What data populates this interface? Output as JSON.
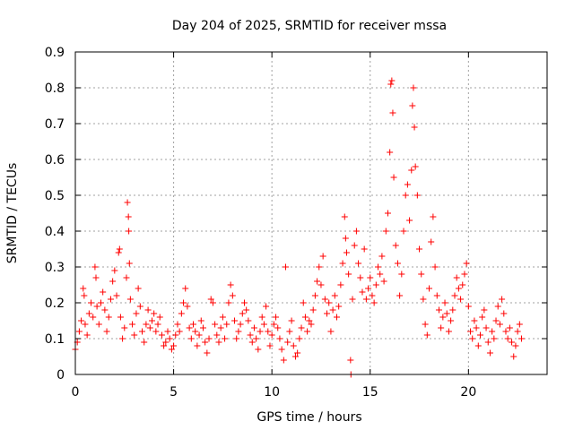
{
  "chart_data": {
    "type": "scatter",
    "title": "Day 204 of 2025, SRMTID for receiver mssa",
    "xlabel": "GPS time / hours",
    "ylabel": "SRMTID / TECUs",
    "xlim": [
      0,
      24
    ],
    "ylim": [
      0,
      0.9
    ],
    "xticks": [
      0,
      5,
      10,
      15,
      20
    ],
    "yticks": [
      0,
      0.1,
      0.2,
      0.3,
      0.4,
      0.5,
      0.6,
      0.7,
      0.8,
      0.9
    ],
    "xtick_labels": [
      "0",
      "5",
      "10",
      "15",
      "20"
    ],
    "ytick_labels": [
      "0",
      "0.1",
      "0.2",
      "0.3",
      "0.4",
      "0.5",
      "0.6",
      "0.7",
      "0.8",
      "0.9"
    ],
    "grid": true,
    "marker": "+",
    "color": "#ff0000",
    "series": [
      {
        "name": "SRMTID",
        "points": [
          [
            0.0,
            0.07
          ],
          [
            0.1,
            0.09
          ],
          [
            0.2,
            0.12
          ],
          [
            0.3,
            0.15
          ],
          [
            0.4,
            0.24
          ],
          [
            0.45,
            0.22
          ],
          [
            0.5,
            0.14
          ],
          [
            0.6,
            0.11
          ],
          [
            0.7,
            0.17
          ],
          [
            0.8,
            0.2
          ],
          [
            0.9,
            0.16
          ],
          [
            1.0,
            0.3
          ],
          [
            1.05,
            0.27
          ],
          [
            1.1,
            0.19
          ],
          [
            1.2,
            0.14
          ],
          [
            1.3,
            0.2
          ],
          [
            1.4,
            0.23
          ],
          [
            1.5,
            0.18
          ],
          [
            1.6,
            0.12
          ],
          [
            1.7,
            0.16
          ],
          [
            1.8,
            0.21
          ],
          [
            1.9,
            0.26
          ],
          [
            2.0,
            0.29
          ],
          [
            2.1,
            0.22
          ],
          [
            2.2,
            0.34
          ],
          [
            2.25,
            0.35
          ],
          [
            2.3,
            0.16
          ],
          [
            2.4,
            0.1
          ],
          [
            2.5,
            0.13
          ],
          [
            2.6,
            0.27
          ],
          [
            2.65,
            0.48
          ],
          [
            2.7,
            0.44
          ],
          [
            2.72,
            0.4
          ],
          [
            2.75,
            0.31
          ],
          [
            2.8,
            0.21
          ],
          [
            2.9,
            0.14
          ],
          [
            3.0,
            0.11
          ],
          [
            3.1,
            0.17
          ],
          [
            3.2,
            0.24
          ],
          [
            3.3,
            0.19
          ],
          [
            3.4,
            0.12
          ],
          [
            3.5,
            0.09
          ],
          [
            3.6,
            0.14
          ],
          [
            3.7,
            0.18
          ],
          [
            3.8,
            0.13
          ],
          [
            3.9,
            0.15
          ],
          [
            4.0,
            0.17
          ],
          [
            4.1,
            0.12
          ],
          [
            4.2,
            0.14
          ],
          [
            4.3,
            0.16
          ],
          [
            4.4,
            0.11
          ],
          [
            4.5,
            0.08
          ],
          [
            4.6,
            0.09
          ],
          [
            4.7,
            0.12
          ],
          [
            4.8,
            0.1
          ],
          [
            4.9,
            0.07
          ],
          [
            5.0,
            0.08
          ],
          [
            5.1,
            0.11
          ],
          [
            5.2,
            0.14
          ],
          [
            5.3,
            0.12
          ],
          [
            5.4,
            0.17
          ],
          [
            5.5,
            0.2
          ],
          [
            5.6,
            0.24
          ],
          [
            5.7,
            0.19
          ],
          [
            5.8,
            0.13
          ],
          [
            5.9,
            0.1
          ],
          [
            6.0,
            0.14
          ],
          [
            6.1,
            0.12
          ],
          [
            6.2,
            0.08
          ],
          [
            6.3,
            0.11
          ],
          [
            6.4,
            0.15
          ],
          [
            6.5,
            0.13
          ],
          [
            6.6,
            0.09
          ],
          [
            6.7,
            0.06
          ],
          [
            6.8,
            0.1
          ],
          [
            6.9,
            0.21
          ],
          [
            7.0,
            0.2
          ],
          [
            7.1,
            0.14
          ],
          [
            7.2,
            0.11
          ],
          [
            7.3,
            0.09
          ],
          [
            7.4,
            0.13
          ],
          [
            7.5,
            0.16
          ],
          [
            7.6,
            0.1
          ],
          [
            7.7,
            0.14
          ],
          [
            7.8,
            0.2
          ],
          [
            7.9,
            0.25
          ],
          [
            8.0,
            0.22
          ],
          [
            8.1,
            0.15
          ],
          [
            8.2,
            0.1
          ],
          [
            8.3,
            0.12
          ],
          [
            8.4,
            0.14
          ],
          [
            8.5,
            0.17
          ],
          [
            8.6,
            0.2
          ],
          [
            8.7,
            0.18
          ],
          [
            8.8,
            0.15
          ],
          [
            8.9,
            0.11
          ],
          [
            9.0,
            0.09
          ],
          [
            9.1,
            0.13
          ],
          [
            9.2,
            0.1
          ],
          [
            9.3,
            0.07
          ],
          [
            9.4,
            0.12
          ],
          [
            9.5,
            0.16
          ],
          [
            9.6,
            0.14
          ],
          [
            9.7,
            0.19
          ],
          [
            9.8,
            0.12
          ],
          [
            9.9,
            0.08
          ],
          [
            10.0,
            0.11
          ],
          [
            10.1,
            0.14
          ],
          [
            10.2,
            0.16
          ],
          [
            10.3,
            0.13
          ],
          [
            10.4,
            0.1
          ],
          [
            10.5,
            0.07
          ],
          [
            10.6,
            0.04
          ],
          [
            10.7,
            0.3
          ],
          [
            10.8,
            0.09
          ],
          [
            10.9,
            0.12
          ],
          [
            11.0,
            0.15
          ],
          [
            11.1,
            0.08
          ],
          [
            11.2,
            0.05
          ],
          [
            11.3,
            0.06
          ],
          [
            11.4,
            0.1
          ],
          [
            11.5,
            0.13
          ],
          [
            11.6,
            0.2
          ],
          [
            11.7,
            0.16
          ],
          [
            11.8,
            0.12
          ],
          [
            11.9,
            0.15
          ],
          [
            12.0,
            0.14
          ],
          [
            12.1,
            0.18
          ],
          [
            12.2,
            0.22
          ],
          [
            12.3,
            0.26
          ],
          [
            12.4,
            0.3
          ],
          [
            12.5,
            0.25
          ],
          [
            12.6,
            0.33
          ],
          [
            12.7,
            0.21
          ],
          [
            12.8,
            0.17
          ],
          [
            12.9,
            0.2
          ],
          [
            13.0,
            0.12
          ],
          [
            13.1,
            0.18
          ],
          [
            13.2,
            0.22
          ],
          [
            13.3,
            0.16
          ],
          [
            13.4,
            0.19
          ],
          [
            13.5,
            0.25
          ],
          [
            13.6,
            0.31
          ],
          [
            13.7,
            0.44
          ],
          [
            13.75,
            0.38
          ],
          [
            13.8,
            0.34
          ],
          [
            13.9,
            0.28
          ],
          [
            14.0,
            0.04
          ],
          [
            14.02,
            0.0
          ],
          [
            14.1,
            0.21
          ],
          [
            14.2,
            0.36
          ],
          [
            14.3,
            0.4
          ],
          [
            14.4,
            0.31
          ],
          [
            14.5,
            0.27
          ],
          [
            14.6,
            0.23
          ],
          [
            14.7,
            0.35
          ],
          [
            14.8,
            0.21
          ],
          [
            14.9,
            0.24
          ],
          [
            15.0,
            0.27
          ],
          [
            15.1,
            0.22
          ],
          [
            15.2,
            0.2
          ],
          [
            15.3,
            0.25
          ],
          [
            15.4,
            0.3
          ],
          [
            15.5,
            0.28
          ],
          [
            15.6,
            0.33
          ],
          [
            15.7,
            0.26
          ],
          [
            15.8,
            0.4
          ],
          [
            15.9,
            0.45
          ],
          [
            16.0,
            0.62
          ],
          [
            16.05,
            0.81
          ],
          [
            16.1,
            0.82
          ],
          [
            16.15,
            0.73
          ],
          [
            16.2,
            0.55
          ],
          [
            16.3,
            0.36
          ],
          [
            16.4,
            0.31
          ],
          [
            16.5,
            0.22
          ],
          [
            16.6,
            0.28
          ],
          [
            16.7,
            0.4
          ],
          [
            16.8,
            0.5
          ],
          [
            16.9,
            0.53
          ],
          [
            17.0,
            0.43
          ],
          [
            17.1,
            0.57
          ],
          [
            17.15,
            0.75
          ],
          [
            17.2,
            0.8
          ],
          [
            17.25,
            0.69
          ],
          [
            17.3,
            0.58
          ],
          [
            17.4,
            0.5
          ],
          [
            17.5,
            0.35
          ],
          [
            17.6,
            0.28
          ],
          [
            17.7,
            0.21
          ],
          [
            17.8,
            0.14
          ],
          [
            17.9,
            0.11
          ],
          [
            18.0,
            0.24
          ],
          [
            18.1,
            0.37
          ],
          [
            18.2,
            0.44
          ],
          [
            18.3,
            0.3
          ],
          [
            18.4,
            0.22
          ],
          [
            18.5,
            0.18
          ],
          [
            18.6,
            0.13
          ],
          [
            18.7,
            0.16
          ],
          [
            18.8,
            0.2
          ],
          [
            18.9,
            0.17
          ],
          [
            19.0,
            0.12
          ],
          [
            19.1,
            0.15
          ],
          [
            19.2,
            0.18
          ],
          [
            19.3,
            0.22
          ],
          [
            19.4,
            0.27
          ],
          [
            19.5,
            0.24
          ],
          [
            19.6,
            0.21
          ],
          [
            19.7,
            0.25
          ],
          [
            19.8,
            0.28
          ],
          [
            19.9,
            0.31
          ],
          [
            20.0,
            0.19
          ],
          [
            20.1,
            0.12
          ],
          [
            20.2,
            0.1
          ],
          [
            20.3,
            0.15
          ],
          [
            20.4,
            0.13
          ],
          [
            20.5,
            0.08
          ],
          [
            20.6,
            0.11
          ],
          [
            20.7,
            0.16
          ],
          [
            20.8,
            0.18
          ],
          [
            20.9,
            0.13
          ],
          [
            21.0,
            0.09
          ],
          [
            21.1,
            0.06
          ],
          [
            21.2,
            0.12
          ],
          [
            21.3,
            0.1
          ],
          [
            21.4,
            0.15
          ],
          [
            21.5,
            0.19
          ],
          [
            21.6,
            0.14
          ],
          [
            21.7,
            0.21
          ],
          [
            21.8,
            0.17
          ],
          [
            21.9,
            0.12
          ],
          [
            22.0,
            0.1
          ],
          [
            22.1,
            0.13
          ],
          [
            22.2,
            0.09
          ],
          [
            22.3,
            0.05
          ],
          [
            22.4,
            0.08
          ],
          [
            22.5,
            0.12
          ],
          [
            22.6,
            0.14
          ],
          [
            22.7,
            0.1
          ]
        ]
      }
    ]
  }
}
